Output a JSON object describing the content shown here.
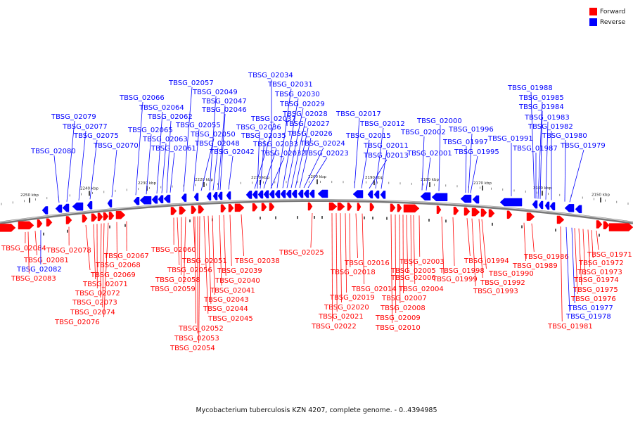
{
  "colors": {
    "forward": "#ff0000",
    "reverse": "#0000ff",
    "backbone": "#555555"
  },
  "legend": [
    {
      "label": "Forward",
      "color": "#ff0000"
    },
    {
      "label": "Reverse",
      "color": "#0000ff"
    }
  ],
  "caption": "Mycobacterium tuberculosis KZN 4207, complete genome. - 0..4394985",
  "ticks": [
    "2250 kbp",
    "2240 kbp",
    "2230 kbp",
    "2220 kbp",
    "2210 kbp",
    "2200 kbp",
    "2190 kbp",
    "2180 kbp",
    "2170 kbp",
    "2160 kbp",
    "2150 kbp"
  ],
  "reverse_genes": [
    "TBSG_02080",
    "TBSG_02079",
    "TBSG_02077",
    "TBSG_02075",
    "TBSG_02070",
    "TBSG_02066",
    "TBSG_02065",
    "TBSG_02064",
    "TBSG_02063",
    "TBSG_02062",
    "TBSG_02061",
    "TBSG_02057",
    "TBSG_02055",
    "TBSG_02050",
    "TBSG_02049",
    "TBSG_02048",
    "TBSG_02047",
    "TBSG_02046",
    "TBSG_02042",
    "TBSG_02037",
    "TBSG_02036",
    "TBSG_02035",
    "TBSG_02034",
    "TBSG_02033",
    "TBSG_02032",
    "TBSG_02031",
    "TBSG_02030",
    "TBSG_02029",
    "TBSG_02028",
    "TBSG_02027",
    "TBSG_02026",
    "TBSG_02024",
    "TBSG_02023",
    "TBSG_02017",
    "TBSG_02015",
    "TBSG_02013",
    "TBSG_02012",
    "TBSG_02011",
    "TBSG_02002",
    "TBSG_02001",
    "TBSG_02000",
    "TBSG_01997",
    "TBSG_01996",
    "TBSG_01995",
    "TBSG_01991",
    "TBSG_01988",
    "TBSG_01987",
    "TBSG_01985",
    "TBSG_01984",
    "TBSG_01983",
    "TBSG_01982",
    "TBSG_01980",
    "TBSG_01979"
  ],
  "forward_genes": [
    "TBSG_02084",
    "TBSG_02081",
    "TBSG_02082",
    "TBSG_02083",
    "TBSG_02078",
    "TBSG_02069",
    "TBSG_02071",
    "TBSG_02072",
    "TBSG_02073",
    "TBSG_02074",
    "TBSG_02076",
    "TBSG_02068",
    "TBSG_02067",
    "TBSG_02060",
    "TBSG_02056",
    "TBSG_02058",
    "TBSG_02059",
    "TBSG_02051",
    "TBSG_02052",
    "TBSG_02053",
    "TBSG_02054",
    "TBSG_02045",
    "TBSG_02044",
    "TBSG_02043",
    "TBSG_02041",
    "TBSG_02040",
    "TBSG_02039",
    "TBSG_02038",
    "TBSG_02025",
    "TBSG_02022",
    "TBSG_02021",
    "TBSG_02020",
    "TBSG_02019",
    "TBSG_02018",
    "TBSG_02016",
    "TBSG_02014",
    "TBSG_02010",
    "TBSG_02009",
    "TBSG_02008",
    "TBSG_02007",
    "TBSG_02006",
    "TBSG_02005",
    "TBSG_02004",
    "TBSG_02003",
    "TBSG_01999",
    "TBSG_01998",
    "TBSG_01994",
    "TBSG_01993",
    "TBSG_01992",
    "TBSG_01990",
    "TBSG_01989",
    "TBSG_01986",
    "TBSG_01981",
    "TBSG_01978",
    "TBSG_01977",
    "TBSG_01976",
    "TBSG_01975",
    "TBSG_01974",
    "TBSG_01973",
    "TBSG_01972",
    "TBSG_01971"
  ],
  "blue_labeled_forward": [
    "TBSG_02082",
    "TBSG_01978",
    "TBSG_01977"
  ]
}
